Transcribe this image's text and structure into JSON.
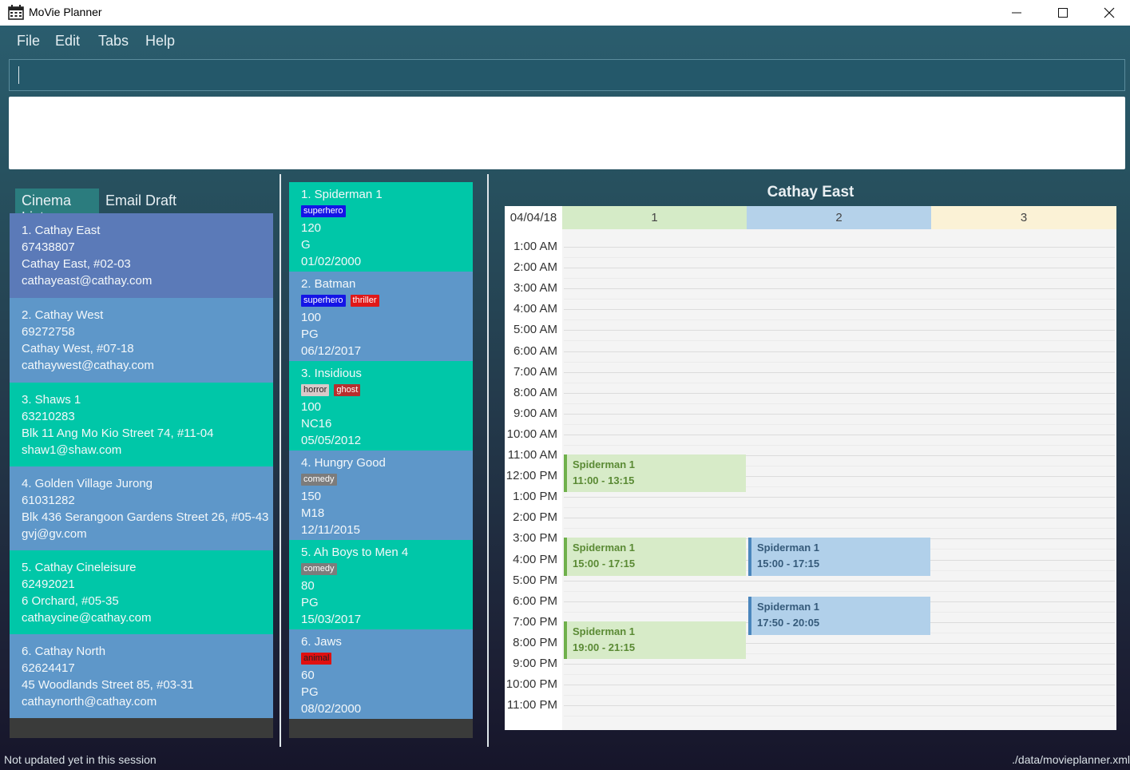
{
  "window": {
    "title": "MoVie Planner",
    "minimize": "—",
    "maximize": "☐",
    "close": "✕"
  },
  "menu": [
    "File",
    "Edit",
    "Tabs",
    "Help"
  ],
  "command": {
    "value": ""
  },
  "tabs": [
    "Cinema List",
    "Email Draft"
  ],
  "cinemas": [
    {
      "title": "1.  Cathay East",
      "phone": "67438807",
      "address": "Cathay East, #02-03",
      "email": "cathayeast@cathay.com"
    },
    {
      "title": "2.  Cathay West",
      "phone": "69272758",
      "address": "Cathay West, #07-18",
      "email": "cathaywest@cathay.com"
    },
    {
      "title": "3.  Shaws 1",
      "phone": "63210283",
      "address": "Blk 11 Ang Mo Kio Street 74, #11-04",
      "email": "shaw1@shaw.com"
    },
    {
      "title": "4.  Golden Village Jurong",
      "phone": "61031282",
      "address": "Blk 436 Serangoon Gardens Street 26, #05-43",
      "email": "gvj@gv.com"
    },
    {
      "title": "5.  Cathay Cineleisure",
      "phone": "62492021",
      "address": "6 Orchard, #05-35",
      "email": "cathaycine@cathay.com"
    },
    {
      "title": "6.  Cathay North",
      "phone": "62624417",
      "address": "45 Woodlands Street 85, #03-31",
      "email": "cathaynorth@cathay.com"
    }
  ],
  "movies": [
    {
      "title": "1.  Spiderman 1",
      "tags": [
        "superhero"
      ],
      "duration": "120",
      "rating": "G",
      "date": "01/02/2000"
    },
    {
      "title": "2.  Batman",
      "tags": [
        "superhero",
        "thriller"
      ],
      "duration": "100",
      "rating": "PG",
      "date": "06/12/2017"
    },
    {
      "title": "3.  Insidious",
      "tags": [
        "horror",
        "ghost"
      ],
      "duration": "100",
      "rating": "NC16",
      "date": "05/05/2012"
    },
    {
      "title": "4.  Hungry Good",
      "tags": [
        "comedy"
      ],
      "duration": "150",
      "rating": "M18",
      "date": "12/11/2015"
    },
    {
      "title": "5.  Ah Boys to Men 4",
      "tags": [
        "comedy"
      ],
      "duration": "80",
      "rating": "PG",
      "date": "15/03/2017"
    },
    {
      "title": "6.  Jaws",
      "tags": [
        "animal"
      ],
      "duration": "60",
      "rating": "PG",
      "date": "08/02/2000"
    }
  ],
  "tag_colors": {
    "superhero": {
      "bg": "#1414e6",
      "fg": "#ffffff"
    },
    "thriller": {
      "bg": "#e01818",
      "fg": "#ffffff"
    },
    "horror": {
      "bg": "#d9c9c9",
      "fg": "#222222"
    },
    "ghost": {
      "bg": "#b82e2e",
      "fg": "#ffffff"
    },
    "comedy": {
      "bg": "#7c7c7c",
      "fg": "#ffffff"
    },
    "animal": {
      "bg": "#e01010",
      "fg": "#222222"
    }
  },
  "calendar": {
    "title": "Cathay East",
    "date": "04/04/18",
    "columns": [
      {
        "label": "1",
        "color": "#d5ebc7"
      },
      {
        "label": "2",
        "color": "#b5d2ea"
      },
      {
        "label": "3",
        "color": "#fbf2d6"
      }
    ],
    "times": [
      "1:00 AM",
      "2:00 AM",
      "3:00 AM",
      "4:00 AM",
      "5:00 AM",
      "6:00 AM",
      "7:00 AM",
      "8:00 AM",
      "9:00 AM",
      "10:00 AM",
      "11:00 AM",
      "12:00 PM",
      "1:00 PM",
      "2:00 PM",
      "3:00 PM",
      "4:00 PM",
      "5:00 PM",
      "6:00 PM",
      "7:00 PM",
      "8:00 PM",
      "9:00 PM",
      "10:00 PM",
      "11:00 PM"
    ],
    "events": [
      {
        "column": 1,
        "title": "Spiderman 1",
        "time": "11:00 - 13:15",
        "color": "green"
      },
      {
        "column": 1,
        "title": "Spiderman 1",
        "time": "15:00 - 17:15",
        "color": "green"
      },
      {
        "column": 1,
        "title": "Spiderman 1",
        "time": "19:00 - 21:15",
        "color": "green"
      },
      {
        "column": 2,
        "title": "Spiderman 1",
        "time": "15:00 - 17:15",
        "color": "blue"
      },
      {
        "column": 2,
        "title": "Spiderman 1",
        "time": "17:50 - 20:05",
        "color": "blue"
      }
    ]
  },
  "status": {
    "left": "Not updated yet in this session",
    "right": "./data/movieplanner.xml"
  }
}
